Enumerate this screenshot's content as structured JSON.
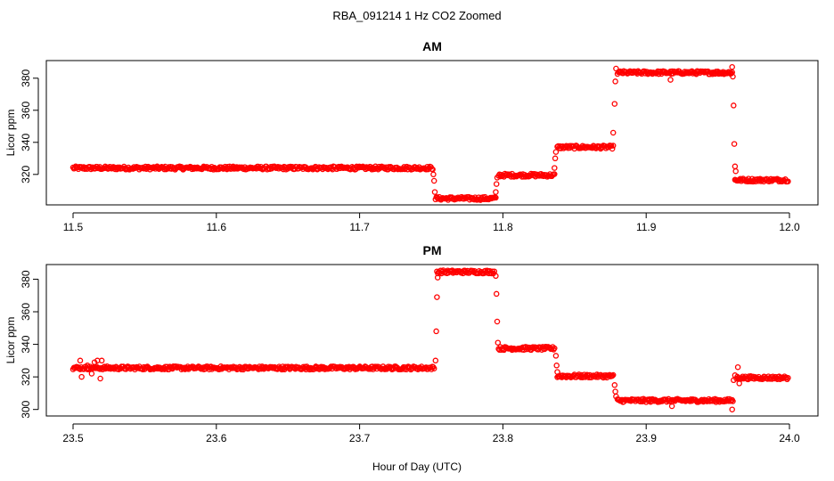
{
  "figure": {
    "title": "RBA_091214  1 Hz CO2 Zoomed",
    "xlabel": "Hour of Day (UTC)"
  },
  "chart_data": [
    {
      "type": "scatter",
      "title": "AM",
      "xlabel": "",
      "ylabel": "Licor ppm",
      "xlim": [
        11.5,
        12.0
      ],
      "ylim": [
        301,
        391
      ],
      "xticks": [
        "11.5",
        "11.6",
        "11.7",
        "11.8",
        "11.9",
        "12.0"
      ],
      "yticks": [
        "320",
        "340",
        "360",
        "380"
      ],
      "marker_color": "#ff0000",
      "grid": false,
      "segments": [
        {
          "x0": 11.5,
          "x1": 11.751,
          "y": 324
        },
        {
          "x0": 11.753,
          "x1": 11.795,
          "y": 305
        },
        {
          "x0": 11.797,
          "x1": 11.836,
          "y": 319.5
        },
        {
          "x0": 11.838,
          "x1": 11.877,
          "y": 337
        },
        {
          "x0": 11.88,
          "x1": 11.96,
          "y": 383.5
        },
        {
          "x0": 11.962,
          "x1": 11.999,
          "y": 316.5
        }
      ],
      "points": [
        {
          "x": 11.752,
          "y": 316
        },
        {
          "x": 11.7525,
          "y": 309
        },
        {
          "x": 11.7515,
          "y": 320
        },
        {
          "x": 11.795,
          "y": 309
        },
        {
          "x": 11.7955,
          "y": 314
        },
        {
          "x": 11.796,
          "y": 318
        },
        {
          "x": 11.836,
          "y": 324
        },
        {
          "x": 11.8365,
          "y": 330
        },
        {
          "x": 11.837,
          "y": 334
        },
        {
          "x": 11.877,
          "y": 346
        },
        {
          "x": 11.878,
          "y": 364
        },
        {
          "x": 11.8785,
          "y": 378
        },
        {
          "x": 11.879,
          "y": 386
        },
        {
          "x": 11.917,
          "y": 379
        },
        {
          "x": 11.96,
          "y": 387
        },
        {
          "x": 11.9605,
          "y": 381
        },
        {
          "x": 11.961,
          "y": 363
        },
        {
          "x": 11.9615,
          "y": 339
        },
        {
          "x": 11.962,
          "y": 325
        },
        {
          "x": 11.9625,
          "y": 322
        }
      ]
    },
    {
      "type": "scatter",
      "title": "PM",
      "xlabel": "",
      "ylabel": "Licor ppm",
      "xlim": [
        23.5,
        24.0
      ],
      "ylim": [
        296,
        389
      ],
      "xticks": [
        "23.5",
        "23.6",
        "23.7",
        "23.8",
        "23.9",
        "24.0"
      ],
      "yticks": [
        "300",
        "320",
        "340",
        "360",
        "380"
      ],
      "marker_color": "#ff0000",
      "grid": false,
      "segments": [
        {
          "x0": 23.5,
          "x1": 23.752,
          "y": 325.5
        },
        {
          "x0": 23.754,
          "x1": 23.794,
          "y": 384.5
        },
        {
          "x0": 23.797,
          "x1": 23.836,
          "y": 337.5
        },
        {
          "x0": 23.838,
          "x1": 23.877,
          "y": 320.5
        },
        {
          "x0": 23.88,
          "x1": 23.96,
          "y": 305.5
        },
        {
          "x0": 23.963,
          "x1": 23.999,
          "y": 319.5
        }
      ],
      "points": [
        {
          "x": 23.505,
          "y": 330
        },
        {
          "x": 23.506,
          "y": 320
        },
        {
          "x": 23.513,
          "y": 322
        },
        {
          "x": 23.515,
          "y": 329
        },
        {
          "x": 23.517,
          "y": 330
        },
        {
          "x": 23.519,
          "y": 319
        },
        {
          "x": 23.52,
          "y": 330
        },
        {
          "x": 23.51,
          "y": 327
        },
        {
          "x": 23.753,
          "y": 330
        },
        {
          "x": 23.7535,
          "y": 348
        },
        {
          "x": 23.754,
          "y": 369
        },
        {
          "x": 23.7545,
          "y": 381
        },
        {
          "x": 23.795,
          "y": 382
        },
        {
          "x": 23.7955,
          "y": 371
        },
        {
          "x": 23.796,
          "y": 354
        },
        {
          "x": 23.7965,
          "y": 341
        },
        {
          "x": 23.837,
          "y": 333
        },
        {
          "x": 23.8375,
          "y": 327
        },
        {
          "x": 23.838,
          "y": 323
        },
        {
          "x": 23.878,
          "y": 315
        },
        {
          "x": 23.8785,
          "y": 311
        },
        {
          "x": 23.879,
          "y": 308
        },
        {
          "x": 23.918,
          "y": 302
        },
        {
          "x": 23.96,
          "y": 300
        },
        {
          "x": 23.9605,
          "y": 305
        },
        {
          "x": 23.961,
          "y": 318
        },
        {
          "x": 23.962,
          "y": 321
        },
        {
          "x": 23.964,
          "y": 326
        },
        {
          "x": 23.965,
          "y": 316
        }
      ]
    }
  ]
}
